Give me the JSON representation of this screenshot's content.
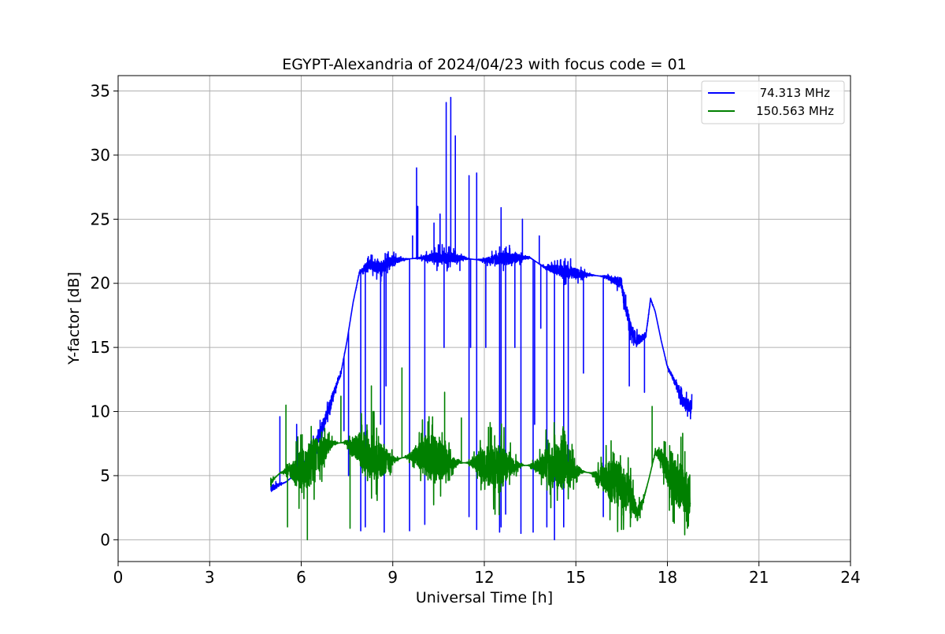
{
  "chart_data": {
    "type": "line",
    "title": "EGYPT-Alexandria of 2024/04/23 with focus code = 01",
    "xlabel": "Universal Time [h]",
    "ylabel": "Y-factor [dB]",
    "xlim": [
      0,
      24
    ],
    "ylim": [
      -1.7,
      36.2
    ],
    "xticks": [
      0,
      3,
      6,
      9,
      12,
      15,
      18,
      21,
      24
    ],
    "yticks": [
      0,
      5,
      10,
      15,
      20,
      25,
      30,
      35
    ],
    "grid": true,
    "legend_position": "top-right",
    "series": [
      {
        "name": "74.313 MHz",
        "color": "#0000ff",
        "noise": 1.0,
        "points": [
          [
            5.0,
            4.0
          ],
          [
            5.5,
            4.5
          ],
          [
            6.0,
            5.5
          ],
          [
            6.5,
            7.5
          ],
          [
            6.8,
            9.5
          ],
          [
            7.0,
            11.0
          ],
          [
            7.3,
            13.0
          ],
          [
            7.5,
            15.5
          ],
          [
            7.7,
            18.5
          ],
          [
            7.9,
            20.8
          ],
          [
            8.2,
            21.5
          ],
          [
            8.6,
            21.2
          ],
          [
            9.0,
            21.8
          ],
          [
            10.0,
            22.0
          ],
          [
            11.0,
            22.0
          ],
          [
            12.0,
            21.8
          ],
          [
            13.0,
            22.0
          ],
          [
            13.5,
            22.0
          ],
          [
            14.0,
            21.2
          ],
          [
            15.0,
            20.8
          ],
          [
            16.0,
            20.5
          ],
          [
            16.5,
            20.0
          ],
          [
            16.6,
            18.5
          ],
          [
            16.8,
            16.5
          ],
          [
            17.0,
            15.5
          ],
          [
            17.3,
            16.0
          ],
          [
            17.45,
            18.8
          ],
          [
            17.6,
            17.8
          ],
          [
            17.8,
            15.5
          ],
          [
            18.0,
            13.5
          ],
          [
            18.3,
            12.0
          ],
          [
            18.5,
            10.8
          ],
          [
            18.8,
            10.3
          ]
        ],
        "spikes": [
          [
            5.3,
            9.6
          ],
          [
            5.85,
            9.0
          ],
          [
            7.4,
            8.5
          ],
          [
            7.55,
            5.0
          ],
          [
            7.95,
            0.7
          ],
          [
            8.1,
            1.0
          ],
          [
            8.6,
            9.0
          ],
          [
            8.72,
            0.6
          ],
          [
            8.78,
            12.0
          ],
          [
            9.55,
            0.7
          ],
          [
            9.65,
            23.7
          ],
          [
            9.78,
            29.0
          ],
          [
            9.82,
            26.0
          ],
          [
            10.05,
            1.2
          ],
          [
            10.05,
            19.0
          ],
          [
            10.35,
            24.7
          ],
          [
            10.45,
            21.0
          ],
          [
            10.55,
            25.4
          ],
          [
            10.68,
            15.0
          ],
          [
            10.75,
            34.1
          ],
          [
            10.9,
            34.5
          ],
          [
            11.05,
            31.5
          ],
          [
            11.1,
            21.5
          ],
          [
            11.2,
            21.0
          ],
          [
            11.5,
            28.4
          ],
          [
            11.5,
            1.8
          ],
          [
            11.55,
            15.0
          ],
          [
            11.75,
            28.6
          ],
          [
            11.75,
            0.8
          ],
          [
            12.05,
            15.0
          ],
          [
            12.25,
            22.5
          ],
          [
            12.5,
            0.6
          ],
          [
            12.55,
            25.9
          ],
          [
            12.55,
            1.0
          ],
          [
            12.7,
            2.0
          ],
          [
            13.0,
            15.0
          ],
          [
            13.2,
            0.5
          ],
          [
            13.25,
            25.0
          ],
          [
            13.6,
            0.6
          ],
          [
            13.65,
            9.0
          ],
          [
            13.8,
            23.7
          ],
          [
            13.85,
            16.5
          ],
          [
            14.05,
            1.0
          ],
          [
            14.3,
            0.0
          ],
          [
            14.6,
            1.0
          ],
          [
            14.75,
            5.5
          ],
          [
            15.25,
            13.0
          ],
          [
            15.9,
            1.8
          ],
          [
            16.75,
            12.0
          ],
          [
            17.25,
            11.5
          ]
        ]
      },
      {
        "name": "150.563 MHz",
        "color": "#008000",
        "noise": 3.6,
        "points": [
          [
            5.0,
            4.5
          ],
          [
            5.3,
            5.2
          ],
          [
            5.6,
            5.5
          ],
          [
            5.9,
            5.3
          ],
          [
            6.2,
            5.8
          ],
          [
            6.5,
            6.5
          ],
          [
            7.0,
            7.5
          ],
          [
            7.5,
            7.6
          ],
          [
            8.0,
            7.0
          ],
          [
            8.5,
            6.2
          ],
          [
            9.0,
            6.2
          ],
          [
            9.5,
            6.5
          ],
          [
            10.0,
            6.5
          ],
          [
            10.5,
            6.2
          ],
          [
            11.0,
            6.0
          ],
          [
            11.5,
            6.0
          ],
          [
            12.0,
            5.8
          ],
          [
            12.5,
            5.6
          ],
          [
            13.0,
            5.8
          ],
          [
            13.5,
            5.8
          ],
          [
            14.0,
            5.8
          ],
          [
            14.5,
            5.6
          ],
          [
            15.0,
            5.4
          ],
          [
            15.5,
            5.2
          ],
          [
            16.0,
            4.8
          ],
          [
            16.5,
            4.2
          ],
          [
            16.8,
            3.5
          ],
          [
            17.0,
            2.0
          ],
          [
            17.2,
            3.0
          ],
          [
            17.4,
            4.8
          ],
          [
            17.6,
            6.8
          ],
          [
            17.8,
            6.5
          ],
          [
            18.0,
            5.2
          ],
          [
            18.3,
            4.5
          ],
          [
            18.5,
            4.0
          ],
          [
            18.7,
            3.5
          ],
          [
            18.75,
            3.6
          ]
        ],
        "spikes": [
          [
            5.5,
            10.5
          ],
          [
            5.55,
            1.0
          ],
          [
            6.2,
            0.0
          ],
          [
            7.3,
            11.2
          ],
          [
            7.6,
            0.9
          ],
          [
            8.3,
            12.0
          ],
          [
            9.3,
            13.4
          ],
          [
            10.7,
            11.5
          ],
          [
            11.25,
            9.5
          ],
          [
            17.5,
            10.4
          ],
          [
            18.5,
            8.3
          ],
          [
            18.75,
            2.0
          ]
        ]
      }
    ]
  }
}
